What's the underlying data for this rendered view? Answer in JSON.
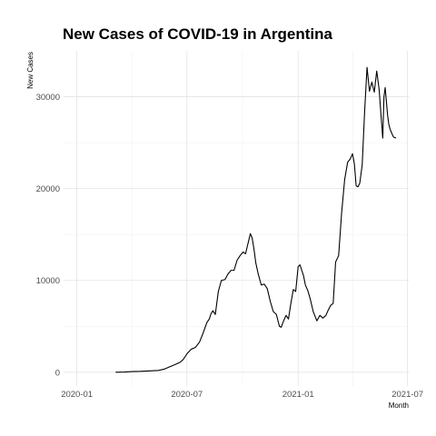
{
  "chart_data": {
    "type": "line",
    "title": "New Cases of COVID-19 in Argentina",
    "xlabel": "Month",
    "ylabel": "New Cases",
    "grid": true,
    "legend": "none",
    "x_type": "date",
    "xlim": [
      "2019-12-10",
      "2021-07-03"
    ],
    "ylim": [
      -1500,
      35000
    ],
    "x_ticks": [
      {
        "value": "2020-01-01",
        "label": "2020-01"
      },
      {
        "value": "2020-07-01",
        "label": "2020-07"
      },
      {
        "value": "2021-01-01",
        "label": "2021-01"
      },
      {
        "value": "2021-07-01",
        "label": "2021-07"
      }
    ],
    "y_ticks": [
      {
        "value": 0,
        "label": "0"
      },
      {
        "value": 10000,
        "label": "10000"
      },
      {
        "value": 20000,
        "label": "20000"
      },
      {
        "value": 30000,
        "label": "30000"
      }
    ],
    "series": [
      {
        "color": "#000000",
        "x": [
          "2020-03-05",
          "2020-03-20",
          "2020-04-01",
          "2020-04-15",
          "2020-05-01",
          "2020-05-15",
          "2020-05-25",
          "2020-06-01",
          "2020-06-10",
          "2020-06-20",
          "2020-06-25",
          "2020-07-01",
          "2020-07-08",
          "2020-07-15",
          "2020-07-22",
          "2020-07-28",
          "2020-08-03",
          "2020-08-07",
          "2020-08-10",
          "2020-08-13",
          "2020-08-17",
          "2020-08-22",
          "2020-08-27",
          "2020-09-02",
          "2020-09-07",
          "2020-09-12",
          "2020-09-17",
          "2020-09-22",
          "2020-09-27",
          "2020-10-02",
          "2020-10-06",
          "2020-10-10",
          "2020-10-14",
          "2020-10-17",
          "2020-10-20",
          "2020-10-23",
          "2020-10-27",
          "2020-11-01",
          "2020-11-06",
          "2020-11-11",
          "2020-11-16",
          "2020-11-21",
          "2020-11-26",
          "2020-12-01",
          "2020-12-04",
          "2020-12-08",
          "2020-12-12",
          "2020-12-16",
          "2020-12-20",
          "2020-12-24",
          "2020-12-28",
          "2021-01-01",
          "2021-01-04",
          "2021-01-07",
          "2021-01-10",
          "2021-01-13",
          "2021-01-17",
          "2021-01-21",
          "2021-01-26",
          "2021-02-01",
          "2021-02-06",
          "2021-02-11",
          "2021-02-16",
          "2021-02-20",
          "2021-02-24",
          "2021-02-28",
          "2021-03-04",
          "2021-03-09",
          "2021-03-14",
          "2021-03-19",
          "2021-03-24",
          "2021-03-28",
          "2021-04-01",
          "2021-04-04",
          "2021-04-07",
          "2021-04-10",
          "2021-04-13",
          "2021-04-17",
          "2021-04-21",
          "2021-04-25",
          "2021-04-29",
          "2021-05-03",
          "2021-05-07",
          "2021-05-11",
          "2021-05-15",
          "2021-05-18",
          "2021-05-21",
          "2021-05-23",
          "2021-05-25",
          "2021-05-27",
          "2021-05-29",
          "2021-05-31",
          "2021-06-02",
          "2021-06-05",
          "2021-06-08",
          "2021-06-12"
        ],
        "y": [
          0,
          30,
          80,
          100,
          150,
          200,
          350,
          550,
          800,
          1100,
          1400,
          2000,
          2500,
          2700,
          3300,
          4300,
          5400,
          5800,
          6400,
          6700,
          6300,
          8800,
          10000,
          10100,
          10700,
          11100,
          11100,
          12200,
          12700,
          13100,
          12900,
          14000,
          15100,
          14600,
          13400,
          11900,
          10700,
          9500,
          9600,
          9100,
          7700,
          6600,
          6300,
          5000,
          4900,
          5600,
          6200,
          5800,
          7500,
          9000,
          8800,
          11500,
          11700,
          11100,
          10500,
          9500,
          8900,
          8000,
          6600,
          5600,
          6200,
          5900,
          6200,
          6800,
          7300,
          7500,
          12000,
          12700,
          17400,
          21000,
          22900,
          23200,
          23800,
          22700,
          20300,
          20200,
          20600,
          22600,
          28400,
          33200,
          30600,
          31600,
          30500,
          32800,
          30800,
          28100,
          25500,
          30000,
          31000,
          29500,
          28000,
          27000,
          26500,
          26000,
          25600,
          25500
        ]
      }
    ]
  }
}
